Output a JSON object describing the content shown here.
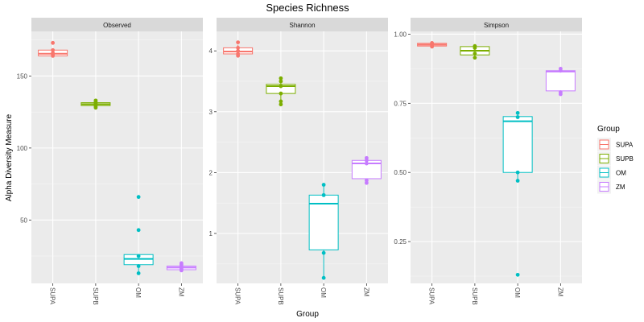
{
  "chart_data": {
    "type": "box",
    "title": "Species Richness",
    "xlabel": "Group",
    "ylabel": "Alpha Diversity Measure",
    "categories": [
      "SUPA",
      "SUPB",
      "OM",
      "ZM"
    ],
    "legend": {
      "title": "Group",
      "placement": "right",
      "entries": [
        {
          "name": "SUPA",
          "color": "#F8766D"
        },
        {
          "name": "SUPB",
          "color": "#7CAE00"
        },
        {
          "name": "OM",
          "color": "#00BFC4"
        },
        {
          "name": "ZM",
          "color": "#C77CFF"
        }
      ]
    },
    "panels": [
      {
        "name": "Observed",
        "ylim": [
          6,
          181
        ],
        "yticks": [
          50,
          100,
          150
        ],
        "series": [
          {
            "name": "SUPA",
            "q1": 164,
            "median": 165.5,
            "q3": 168,
            "whisker_low": 164,
            "whisker_high": 168,
            "points": [
              164,
              165,
              166,
              168,
              173
            ]
          },
          {
            "name": "SUPB",
            "q1": 129.5,
            "median": 130.5,
            "q3": 131.5,
            "whisker_low": 128,
            "whisker_high": 133,
            "points": [
              128,
              129,
              130,
              131,
              132,
              133
            ]
          },
          {
            "name": "OM",
            "q1": 19,
            "median": 23,
            "q3": 26,
            "whisker_low": 13,
            "whisker_high": 26,
            "points": [
              13,
              18,
              25,
              43,
              66
            ]
          },
          {
            "name": "ZM",
            "q1": 15.5,
            "median": 17,
            "q3": 18,
            "whisker_low": 15,
            "whisker_high": 20,
            "points": [
              15,
              16,
              17,
              18,
              19,
              20
            ]
          }
        ]
      },
      {
        "name": "Shannon",
        "ylim": [
          0.18,
          4.32
        ],
        "yticks": [
          1,
          2,
          3,
          4
        ],
        "series": [
          {
            "name": "SUPA",
            "q1": 3.95,
            "median": 3.99,
            "q3": 4.05,
            "whisker_low": 3.92,
            "whisker_high": 4.1,
            "points": [
              3.92,
              3.95,
              4.0,
              4.05,
              4.14
            ]
          },
          {
            "name": "SUPB",
            "q1": 3.3,
            "median": 3.42,
            "q3": 3.45,
            "whisker_low": 3.12,
            "whisker_high": 3.55,
            "points": [
              3.12,
              3.17,
              3.3,
              3.42,
              3.5,
              3.55
            ]
          },
          {
            "name": "OM",
            "q1": 0.73,
            "median": 1.49,
            "q3": 1.63,
            "whisker_low": 0.27,
            "whisker_high": 1.8,
            "points": [
              0.27,
              0.68,
              1.63,
              1.8
            ]
          },
          {
            "name": "ZM",
            "q1": 1.9,
            "median": 2.15,
            "q3": 2.2,
            "whisker_low": 1.83,
            "whisker_high": 2.24,
            "points": [
              1.83,
              1.87,
              2.15,
              2.2,
              2.24
            ]
          }
        ]
      },
      {
        "name": "Simpson",
        "ylim": [
          0.099,
          1.01
        ],
        "yticks": [
          0.25,
          0.5,
          0.75,
          1.0
        ],
        "yticklabels": [
          "0.25",
          "0.50",
          "0.75",
          "1.00"
        ],
        "series": [
          {
            "name": "SUPA",
            "q1": 0.957,
            "median": 0.962,
            "q3": 0.967,
            "whisker_low": 0.955,
            "whisker_high": 0.968,
            "points": [
              0.955,
              0.96,
              0.965,
              0.968
            ]
          },
          {
            "name": "SUPB",
            "q1": 0.925,
            "median": 0.94,
            "q3": 0.955,
            "whisker_low": 0.915,
            "whisker_high": 0.957,
            "points": [
              0.915,
              0.93,
              0.95,
              0.957
            ]
          },
          {
            "name": "OM",
            "q1": 0.5,
            "median": 0.685,
            "q3": 0.702,
            "whisker_low": 0.47,
            "whisker_high": 0.715,
            "points": [
              0.13,
              0.47,
              0.5,
              0.7,
              0.715
            ]
          },
          {
            "name": "ZM",
            "q1": 0.795,
            "median": 0.865,
            "q3": 0.868,
            "whisker_low": 0.783,
            "whisker_high": 0.875,
            "points": [
              0.783,
              0.79,
              0.868,
              0.875
            ]
          }
        ]
      }
    ]
  }
}
